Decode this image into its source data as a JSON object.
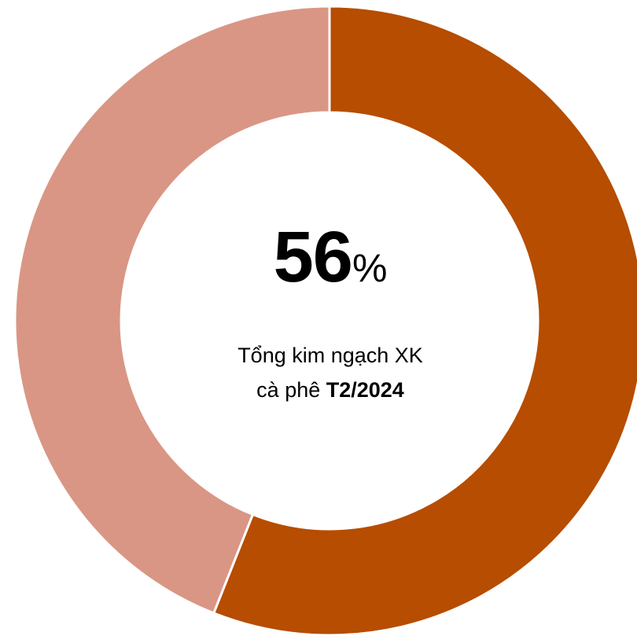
{
  "chart_data": {
    "type": "pie",
    "variant": "donut",
    "slices": [
      {
        "value": 56,
        "color": "#b64d00"
      },
      {
        "value": 44,
        "color": "#d99685"
      }
    ],
    "start_angle": "12 o'clock",
    "direction": "clockwise",
    "slice_border_color": "#ffffff",
    "legend": "none"
  },
  "center": {
    "value": "56",
    "unit": "%",
    "caption_line1": "Tổng kim ngạch XK",
    "caption_line2_prefix": "cà phê ",
    "caption_line2_bold": "T2/2024"
  }
}
